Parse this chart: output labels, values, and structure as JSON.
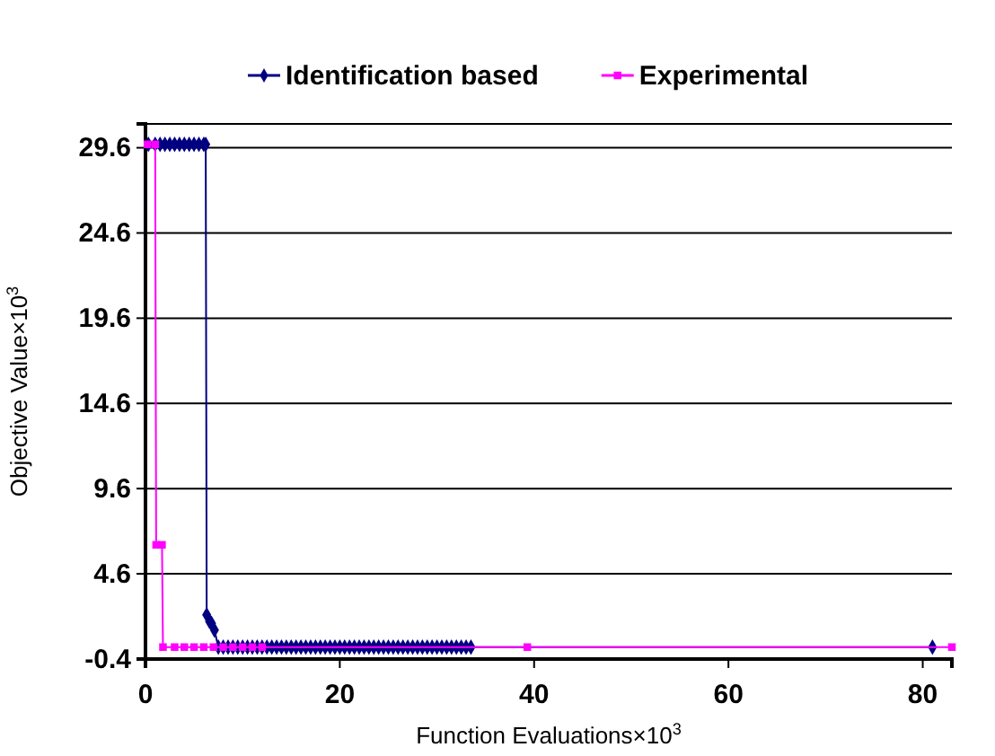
{
  "chart_data": {
    "type": "line",
    "xlabel": "Function Evaluations×10$^{3}$",
    "ylabel": "Objective Value×10$^{3}$",
    "xlim": [
      0,
      83
    ],
    "xticks": [
      0,
      20,
      40,
      60,
      80
    ],
    "ylim": [
      -0.4,
      31
    ],
    "yticks": [
      -0.4,
      4.6,
      9.6,
      14.6,
      19.6,
      24.6,
      29.6
    ],
    "grid": "y",
    "legend": "top",
    "line_style": "solid",
    "series": [
      {
        "name": "Identification based",
        "color": "#000080",
        "marker": "diamond",
        "x": [
          0.3,
          1,
          1.5,
          2,
          2.5,
          3,
          3.5,
          4,
          4.5,
          5,
          5.5,
          6,
          6.2,
          6.3,
          6.6,
          6.8,
          7.1,
          7.5,
          8,
          8.5,
          9,
          9.5,
          10,
          10.5,
          11,
          11.5,
          12,
          12.5,
          13,
          13.5,
          14,
          14.5,
          15,
          15.5,
          16,
          16.5,
          17,
          17.5,
          18,
          18.5,
          19,
          19.5,
          20,
          20.5,
          21,
          21.5,
          22,
          22.5,
          23,
          23.5,
          24,
          24.5,
          25,
          25.5,
          26,
          26.5,
          27,
          27.5,
          28,
          28.5,
          29,
          29.5,
          30,
          30.5,
          31,
          31.5,
          32,
          32.5,
          33,
          33.5,
          81
        ],
        "values": [
          29.8,
          29.8,
          29.8,
          29.8,
          29.8,
          29.8,
          29.8,
          29.8,
          29.8,
          29.8,
          29.8,
          29.8,
          29.8,
          2.2,
          1.8,
          1.7,
          1.3,
          0.3,
          0.3,
          0.3,
          0.3,
          0.3,
          0.3,
          0.3,
          0.3,
          0.3,
          0.3,
          0.3,
          0.3,
          0.3,
          0.3,
          0.3,
          0.3,
          0.3,
          0.3,
          0.3,
          0.3,
          0.3,
          0.3,
          0.3,
          0.3,
          0.3,
          0.3,
          0.3,
          0.3,
          0.3,
          0.3,
          0.3,
          0.3,
          0.3,
          0.3,
          0.3,
          0.3,
          0.3,
          0.3,
          0.3,
          0.3,
          0.3,
          0.3,
          0.3,
          0.3,
          0.3,
          0.3,
          0.3,
          0.3,
          0.3,
          0.3,
          0.3,
          0.3,
          0.3,
          0.3
        ]
      },
      {
        "name": "Experimental",
        "color": "#ff00ff",
        "marker": "square",
        "x": [
          0.2,
          1.0,
          1.1,
          1.7,
          1.8,
          3,
          4,
          5,
          6,
          7,
          8,
          9,
          10,
          11,
          12,
          39.3,
          83
        ],
        "values": [
          29.8,
          29.8,
          6.3,
          6.3,
          0.3,
          0.3,
          0.3,
          0.3,
          0.3,
          0.3,
          0.3,
          0.3,
          0.3,
          0.3,
          0.3,
          0.3,
          0.3
        ]
      }
    ]
  }
}
